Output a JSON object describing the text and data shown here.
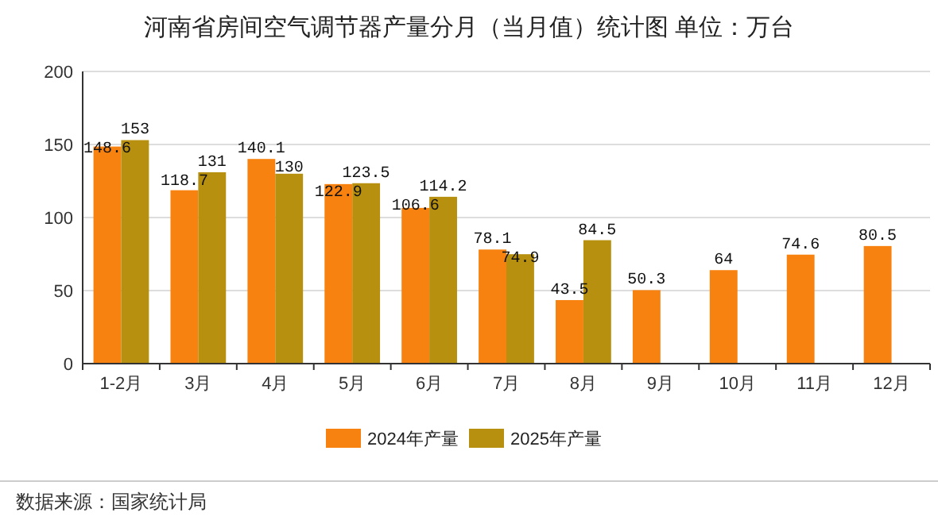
{
  "chart_data": {
    "type": "bar",
    "title": "河南省房间空气调节器产量分月（当月值）统计图 单位：万台",
    "categories": [
      "1-2月",
      "3月",
      "4月",
      "5月",
      "6月",
      "7月",
      "8月",
      "9月",
      "10月",
      "11月",
      "12月"
    ],
    "series": [
      {
        "name": "2024年产量",
        "color": "#f7820f",
        "values": [
          148.6,
          118.7,
          140.1,
          122.9,
          106.6,
          78.1,
          43.5,
          50.3,
          64,
          74.6,
          80.5
        ]
      },
      {
        "name": "2025年产量",
        "color": "#b8900f",
        "values": [
          153,
          131,
          130,
          123.5,
          114.2,
          74.9,
          84.5,
          null,
          null,
          null,
          null
        ]
      }
    ],
    "ylim": [
      0,
      200
    ],
    "yticks": [
      0,
      50,
      100,
      150,
      200
    ],
    "grid": "y",
    "legend": "bottom",
    "data_labels": true,
    "annotations": [
      "数据来源：国家统计局"
    ]
  }
}
